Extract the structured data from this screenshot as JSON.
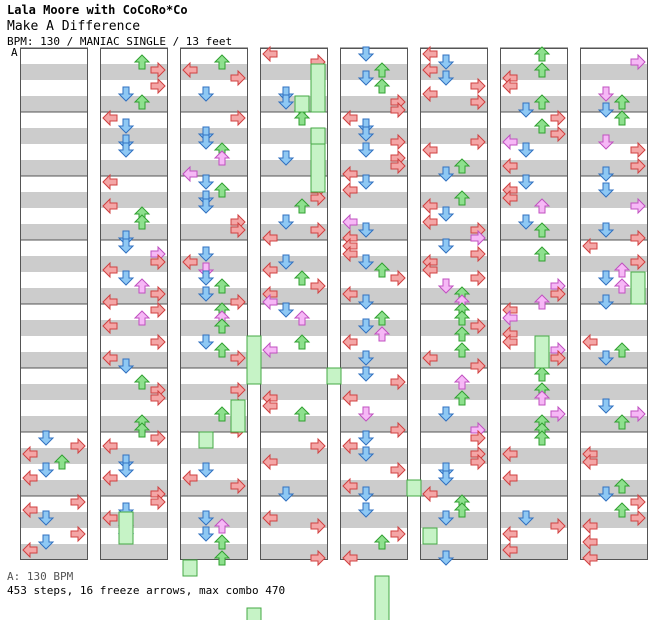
{
  "header": {
    "artist": "Lala Moore with CoCoRo*Co",
    "song": "Make A Difference",
    "meta": "BPM: 130 / MANIAC SINGLE / 13 feet",
    "marker": "A"
  },
  "footer": {
    "bpm_line": "A: 130 BPM",
    "stats": "453 steps, 16 freeze arrows, max combo 470"
  },
  "colors": {
    "band_gray": "#cccccc",
    "column_border": "#555555",
    "left": "#f4a6a6",
    "down": "#8ec8f4",
    "up": "#8ee08e",
    "right": "#f4a6a6",
    "pink": "#f6b8f6",
    "freeze_fill": "#c6f3c6",
    "freeze_border": "#44aa44"
  },
  "chart_data": {
    "type": "step-chart",
    "columns": 8,
    "measures_per_column": 8,
    "lanes": [
      "left",
      "down",
      "up",
      "right"
    ],
    "total_measures": 64,
    "steps": 453,
    "freeze_arrows": 16,
    "max_combo": 470,
    "bpm": 130
  }
}
